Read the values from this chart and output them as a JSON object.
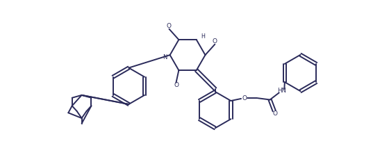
{
  "bg_color": "#ffffff",
  "line_color": "#2a2a5a",
  "line_width": 1.4,
  "fig_width": 5.6,
  "fig_height": 2.23,
  "dpi": 100
}
